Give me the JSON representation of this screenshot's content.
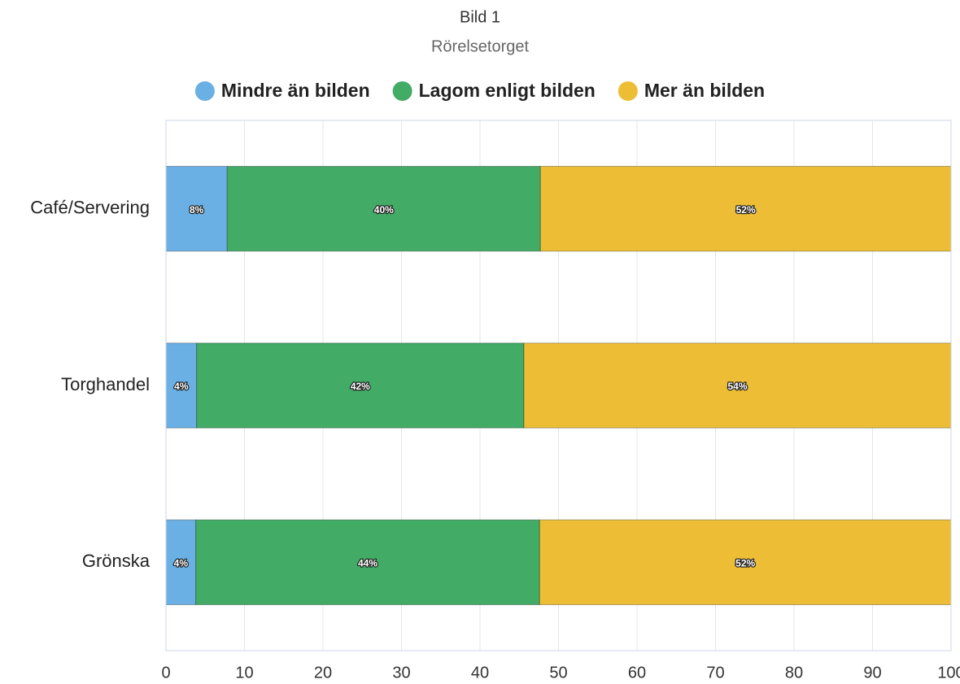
{
  "chart_data": {
    "type": "stacked-bar-horizontal",
    "title": "Bild 1",
    "subtitle": "Rörelsetorget",
    "categories": [
      "Café/Servering",
      "Torghandel",
      "Grönska"
    ],
    "series": [
      {
        "name": "Mindre än bilden",
        "color": "#6ab0e4",
        "values": [
          7.8,
          3.9,
          3.8
        ],
        "value_labels": [
          "8%",
          "4%",
          "4%"
        ]
      },
      {
        "name": "Lagom enligt bilden",
        "color": "#42ab66",
        "values": [
          39.9,
          41.7,
          43.8
        ],
        "value_labels": [
          "40%",
          "42%",
          "44%"
        ]
      },
      {
        "name": "Mer än bilden",
        "color": "#edbe35",
        "values": [
          52.3,
          54.4,
          52.4
        ],
        "value_labels": [
          "52%",
          "54%",
          "52%"
        ]
      }
    ],
    "xlim": [
      0,
      100
    ],
    "xticks": [
      0,
      10,
      20,
      30,
      40,
      50,
      60,
      70,
      80,
      90,
      100
    ],
    "grid": true,
    "legend": "top"
  }
}
